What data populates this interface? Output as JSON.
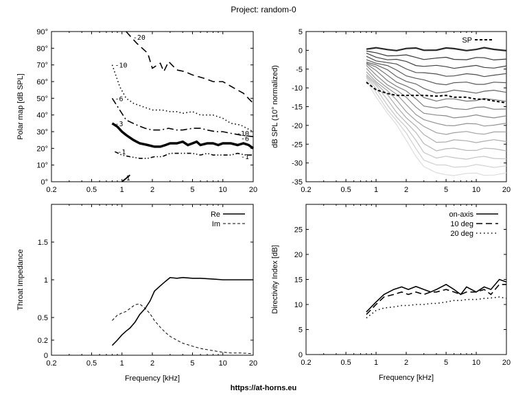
{
  "title": "Project: random-0",
  "footer": "https://at-horns.eu",
  "chart_data": [
    {
      "type": "contour",
      "name": "polar-map",
      "xlabel": "",
      "ylabel": "Polar map [dB SPL]",
      "xscale": "log",
      "xlim": [
        0.2,
        20
      ],
      "ylim": [
        0,
        90
      ],
      "xticks": [
        "0.2",
        "0.5",
        "1",
        "2",
        "5",
        "10",
        "20"
      ],
      "yticks": [
        "0°",
        "10°",
        "20°",
        "30°",
        "40°",
        "50°",
        "60°",
        "70°",
        "80°",
        "90°"
      ],
      "levels": [
        {
          "label": "-20",
          "x": [
            1.1,
            1.4,
            1.8,
            2.0,
            2.4,
            2.6,
            2.9,
            3.5,
            4.2,
            5.0,
            6.5,
            8.0,
            10.0,
            13.0,
            16.0,
            20.0
          ],
          "y": [
            90,
            83,
            77,
            68,
            71,
            66,
            72,
            67,
            66,
            64,
            62,
            60,
            60,
            56,
            53,
            47
          ]
        },
        {
          "label": "-10",
          "x": [
            0.8,
            0.95,
            1.1,
            1.3,
            1.6,
            2.0,
            2.5,
            3.0,
            3.5,
            4.0,
            5.0,
            6.0,
            8.0,
            10.0,
            12.0,
            15.0,
            20.0
          ],
          "y": [
            70,
            57,
            50,
            47,
            45,
            43,
            43,
            42,
            42,
            41,
            42,
            40,
            40,
            38,
            35,
            34,
            30
          ]
        },
        {
          "label": "-6",
          "x": [
            0.8,
            0.95,
            1.1,
            1.4,
            1.7,
            2.0,
            2.4,
            2.9,
            3.5,
            4.0,
            5.0,
            6.0,
            7.0,
            8.5,
            10.0,
            12.0,
            15.0,
            20.0
          ],
          "y": [
            50,
            43,
            37,
            34,
            32,
            31,
            31,
            32,
            31,
            31,
            32,
            32,
            31,
            30,
            30,
            29,
            28,
            27
          ]
        },
        {
          "label": "-3",
          "x": [
            0.8,
            0.9,
            1.0,
            1.1,
            1.3,
            1.5,
            1.8,
            2.1,
            2.4,
            2.7,
            3.0,
            3.5,
            4.0,
            4.5,
            5.0,
            5.5,
            6.0,
            7.0,
            8.0,
            9.0,
            10.0,
            12.0,
            14.0,
            16.0,
            18.0,
            20.0
          ],
          "y": [
            35,
            33,
            30,
            28,
            25,
            23,
            22,
            21,
            21,
            22,
            23,
            23,
            24,
            22,
            23,
            24,
            22,
            23,
            23,
            22,
            23,
            23,
            22,
            23,
            22,
            20
          ]
        },
        {
          "label": "-1",
          "x": [
            0.85,
            1.0,
            1.2,
            1.5,
            1.8,
            2.1,
            2.5,
            3.0,
            3.5,
            4.0,
            5.0,
            6.0,
            7.0,
            8.0,
            10.0,
            12.0,
            14.0,
            17.0,
            20.0
          ],
          "y": [
            18,
            16,
            15,
            14,
            14,
            15,
            15,
            17,
            17,
            17,
            17,
            16,
            17,
            16,
            16,
            16,
            17,
            16,
            16
          ]
        },
        {
          "label": "1",
          "x": [
            1.0,
            1.1,
            1.2
          ],
          "y": [
            0,
            2,
            4
          ]
        }
      ]
    },
    {
      "type": "line",
      "name": "normalized-spl",
      "ylabel": "dB SPL (10° normalized)",
      "xscale": "log",
      "xlim": [
        0.2,
        20
      ],
      "ylim": [
        -35,
        5
      ],
      "xticks": [
        "0.2",
        "0.5",
        "1",
        "2",
        "5",
        "10",
        "20"
      ],
      "yticks": [
        "5",
        "0",
        "-5",
        "-10",
        "-15",
        "-20",
        "-25",
        "-30",
        "-35"
      ],
      "legend": "top-right",
      "legend_entries": [
        "SP"
      ],
      "x": [
        0.8,
        1.0,
        1.3,
        1.6,
        2.0,
        2.5,
        3.0,
        4.0,
        5.0,
        6.0,
        8.0,
        10.0,
        12.0,
        15.0,
        20.0
      ],
      "series": [
        {
          "name": "SP",
          "values": [
            -8.5,
            -10.5,
            -11.5,
            -12.0,
            -12.0,
            -12.0,
            -12.0,
            -12.2,
            -12.0,
            -12.5,
            -12.5,
            -13.0,
            -13.0,
            -13.5,
            -14.0
          ]
        }
      ]
    },
    {
      "type": "line",
      "name": "throat-impedance",
      "xlabel": "Frequency [kHz]",
      "ylabel": "Throat Impedance",
      "xscale": "log",
      "xlim": [
        0.2,
        20
      ],
      "ylim": [
        0,
        2
      ],
      "xticks": [
        "0.2",
        "0.5",
        "1",
        "2",
        "5",
        "10",
        "20"
      ],
      "yticks": [
        "0",
        "0.2",
        "0.5",
        "1",
        "1.5"
      ],
      "legend": "top-right",
      "x": [
        0.8,
        0.9,
        1.0,
        1.1,
        1.2,
        1.35,
        1.5,
        1.7,
        1.9,
        2.1,
        2.4,
        2.7,
        3.0,
        3.5,
        4.0,
        5.0,
        6.0,
        8.0,
        10.0,
        12.0,
        15.0,
        20.0
      ],
      "series": [
        {
          "name": "Re",
          "values": [
            0.13,
            0.2,
            0.27,
            0.32,
            0.36,
            0.44,
            0.54,
            0.62,
            0.72,
            0.85,
            0.92,
            0.98,
            1.03,
            1.02,
            1.03,
            1.02,
            1.02,
            1.01,
            1.0,
            1.0,
            1.0,
            1.0
          ]
        },
        {
          "name": "Im",
          "values": [
            0.46,
            0.53,
            0.56,
            0.58,
            0.62,
            0.67,
            0.68,
            0.62,
            0.55,
            0.46,
            0.37,
            0.3,
            0.25,
            0.2,
            0.16,
            0.12,
            0.09,
            0.06,
            0.04,
            0.03,
            0.03,
            0.02
          ]
        }
      ]
    },
    {
      "type": "line",
      "name": "directivity-index",
      "xlabel": "Frequency [kHz]",
      "ylabel": "Directivity Index [dB]",
      "xscale": "log",
      "xlim": [
        0.2,
        20
      ],
      "ylim": [
        0,
        30
      ],
      "xticks": [
        "0.2",
        "0.5",
        "1",
        "2",
        "5",
        "10",
        "20"
      ],
      "yticks": [
        "0",
        "5",
        "10",
        "15",
        "20",
        "25"
      ],
      "legend": "top-right",
      "x": [
        0.8,
        1.0,
        1.2,
        1.5,
        1.8,
        2.1,
        2.5,
        3.0,
        3.5,
        4.0,
        5.0,
        6.0,
        7.0,
        8.0,
        10.0,
        12.0,
        14.0,
        17.0,
        20.0
      ],
      "series": [
        {
          "name": "on-axis",
          "values": [
            8.5,
            10.5,
            12.0,
            13.0,
            13.5,
            13.0,
            13.6,
            13.0,
            12.5,
            13.0,
            14.0,
            13.0,
            12.0,
            13.5,
            12.5,
            13.5,
            13.0,
            15.0,
            14.5
          ]
        },
        {
          "name": "10 deg",
          "values": [
            8.0,
            10.0,
            11.5,
            12.0,
            12.5,
            12.0,
            12.5,
            12.0,
            12.5,
            12.5,
            13.0,
            12.5,
            12.0,
            12.5,
            12.5,
            13.0,
            12.0,
            14.0,
            14.0
          ]
        },
        {
          "name": "20 deg",
          "values": [
            7.3,
            8.8,
            9.3,
            9.5,
            9.8,
            9.8,
            10.0,
            10.0,
            10.2,
            10.2,
            10.5,
            10.8,
            10.8,
            11.0,
            11.0,
            11.2,
            11.3,
            11.5,
            11.2
          ]
        }
      ]
    }
  ]
}
